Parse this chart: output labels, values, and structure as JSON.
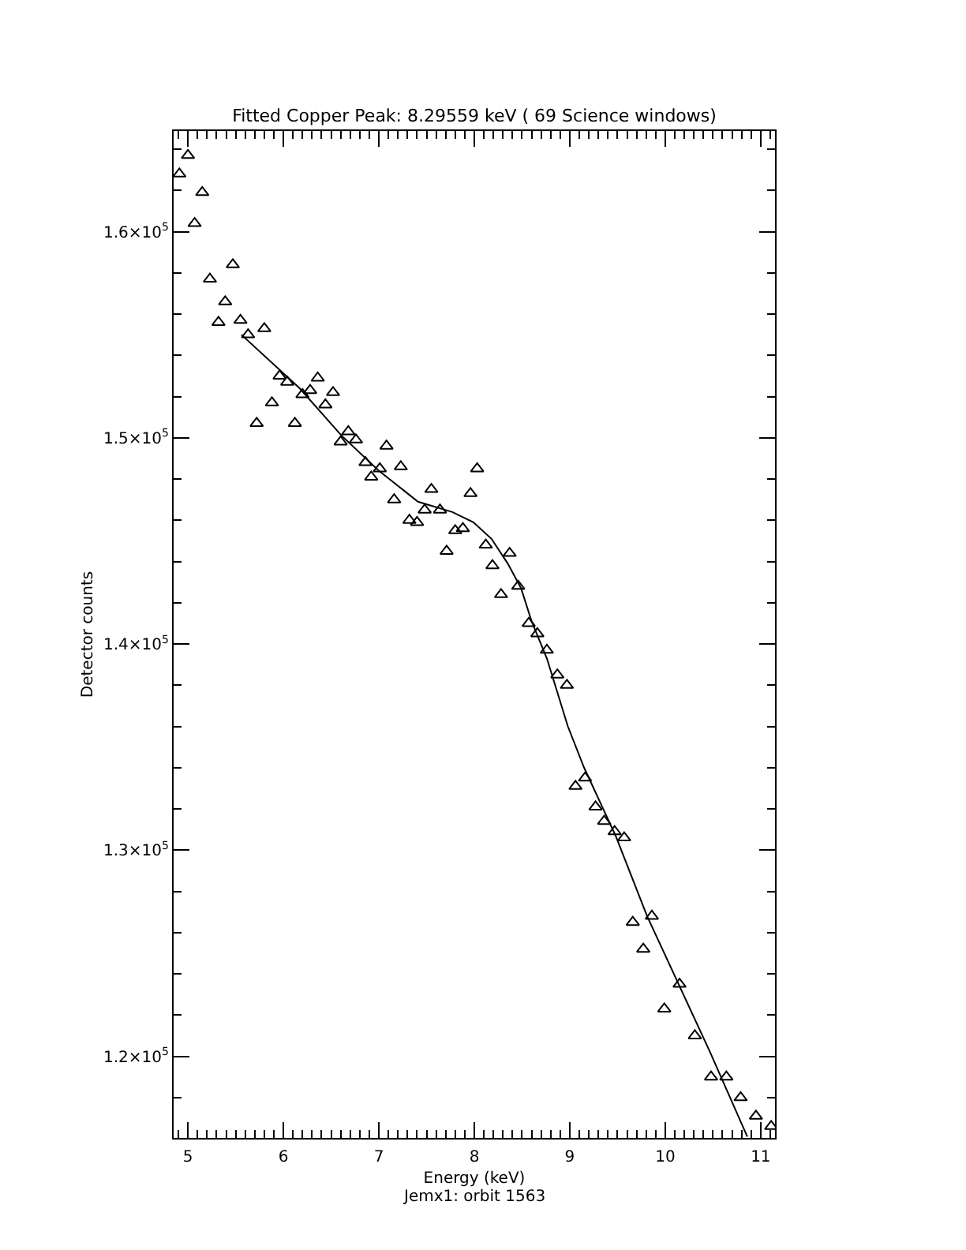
{
  "chart_data": {
    "type": "scatter",
    "title": "Fitted Copper Peak: 8.29559 keV ( 69 Science windows)",
    "xlabel": "Energy (keV)",
    "ylabel": "Detector counts",
    "annotations": [
      "Jemx1: orbit 1563"
    ],
    "marker": "triangle",
    "grid": false,
    "xlim": [
      4.85,
      11.15
    ],
    "ylim": [
      116040,
      164880
    ],
    "xticks": [
      5,
      6,
      7,
      8,
      9,
      10,
      11
    ],
    "yticks": [
      {
        "value": 120000,
        "label": "1.2×10$^{5}$"
      },
      {
        "value": 130000,
        "label": "1.3×10$^{5}$"
      },
      {
        "value": 140000,
        "label": "1.4×10$^{5}$"
      },
      {
        "value": 150000,
        "label": "1.5×10$^{5}$"
      },
      {
        "value": 160000,
        "label": "1.6×10$^{5}$"
      }
    ],
    "series": [
      {
        "color": "#000000",
        "x": [
          4.91,
          5.0,
          5.07,
          5.15,
          5.23,
          5.32,
          5.39,
          5.47,
          5.55,
          5.63,
          5.72,
          5.8,
          5.88,
          5.96,
          6.04,
          6.12,
          6.2,
          6.28,
          6.36,
          6.44,
          6.52,
          6.6,
          6.68,
          6.76,
          6.86,
          6.92,
          7.01,
          7.08,
          7.16,
          7.23,
          7.32,
          7.4,
          7.48,
          7.55,
          7.64,
          7.71,
          7.8,
          7.88,
          7.96,
          8.03,
          8.12,
          8.19,
          8.28,
          8.37,
          8.46,
          8.57,
          8.66,
          8.76,
          8.87,
          8.97,
          9.06,
          9.16,
          9.27,
          9.36,
          9.47,
          9.57,
          9.66,
          9.77,
          9.86,
          9.99,
          10.15,
          10.31,
          10.48,
          10.64,
          10.79,
          10.95,
          11.11
        ],
        "values": [
          162800,
          163700,
          160400,
          161900,
          157700,
          155600,
          156600,
          158400,
          155700,
          155000,
          150700,
          155300,
          151700,
          153000,
          152700,
          150700,
          152100,
          152300,
          152900,
          151600,
          152200,
          149800,
          150300,
          149900,
          148800,
          148100,
          148500,
          149600,
          147000,
          148600,
          146000,
          145900,
          146500,
          147500,
          146500,
          144500,
          145500,
          145600,
          147300,
          148500,
          144800,
          143800,
          142400,
          144400,
          142800,
          141000,
          140500,
          139700,
          138500,
          138000,
          133100,
          133500,
          132100,
          131400,
          130900,
          130600,
          126500,
          125200,
          126800,
          122300,
          123500,
          121000,
          119000,
          119000,
          118000,
          117100,
          116600
        ]
      },
      {
        "type": "line",
        "marker": "none",
        "line_style": "solid",
        "color": "#000000",
        "x": [
          5.56,
          6.17,
          6.61,
          7.0,
          7.41,
          7.77,
          7.99,
          8.18,
          8.35,
          8.49,
          8.6,
          8.76,
          8.98,
          9.15,
          9.48,
          9.81,
          10.14,
          10.47,
          10.86
        ],
        "values": [
          155000,
          152400,
          150100,
          148400,
          146900,
          146400,
          145900,
          145100,
          143900,
          142700,
          141100,
          139300,
          136000,
          134000,
          130700,
          126800,
          123500,
          120200,
          116100
        ]
      }
    ]
  }
}
